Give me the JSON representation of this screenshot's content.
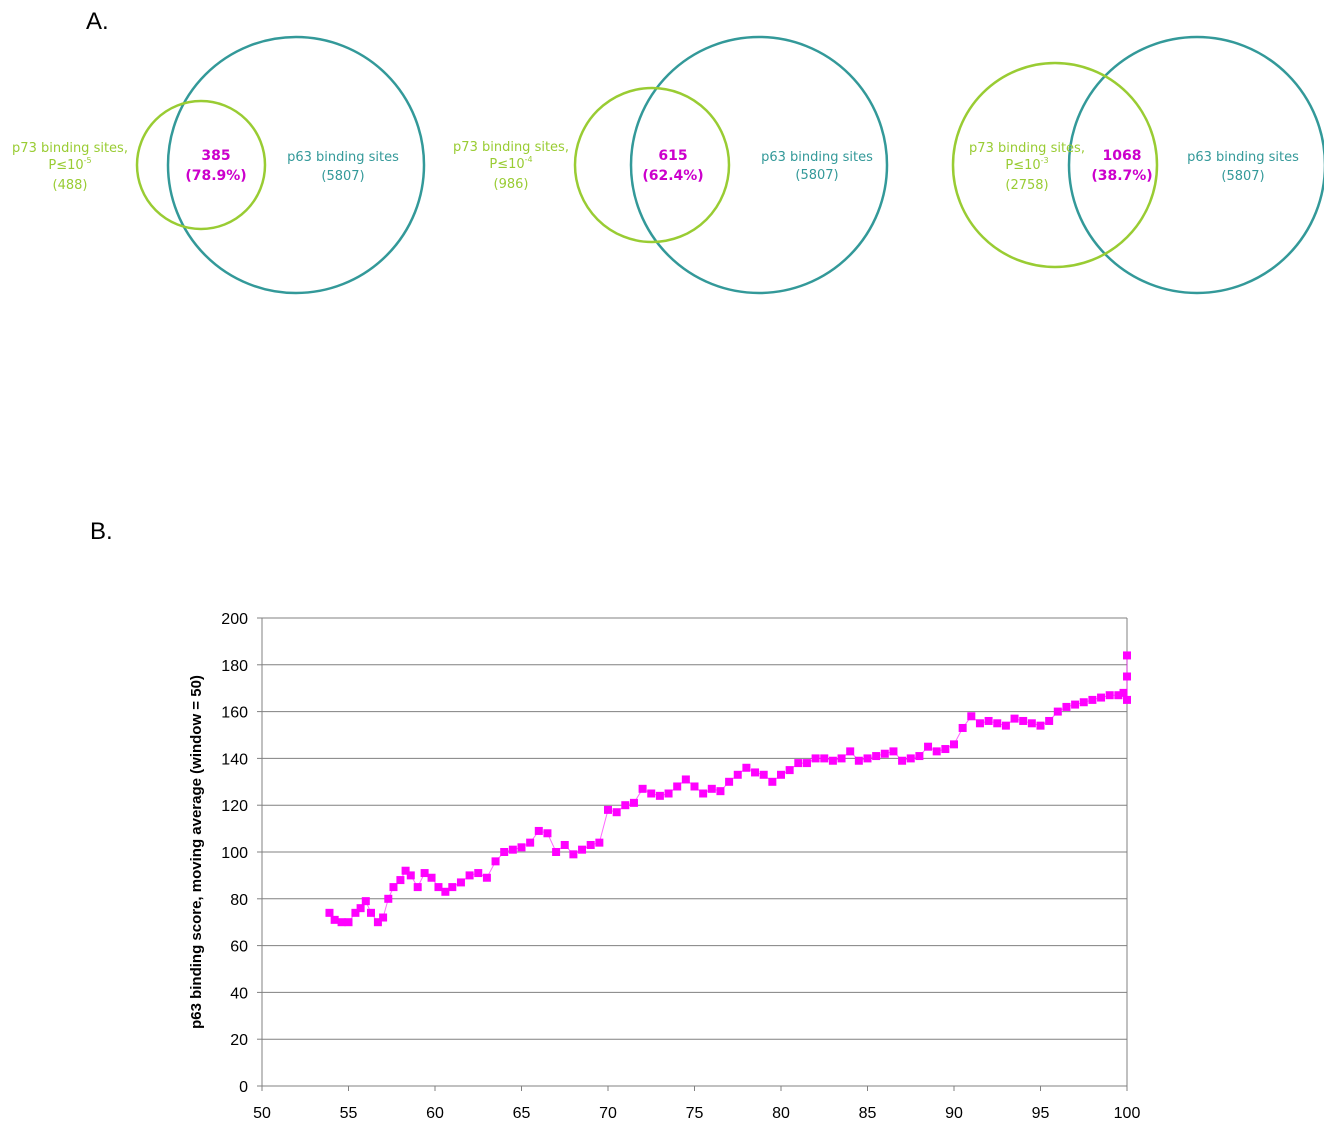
{
  "panels": {
    "a": "A.",
    "b": "B."
  },
  "colors": {
    "p73": "#99cc33",
    "p63": "#339999",
    "overlap": "#cc00cc",
    "marker": "#ff00ff",
    "grid": "#808080"
  },
  "venn": [
    {
      "p73_label": "p73 binding sites,",
      "p73_threshold_base": "P≤10",
      "p73_threshold_exp": "-5",
      "p73_count": "(488)",
      "overlap_count": "385",
      "overlap_percent": "(78.9%)",
      "p63_label": "p63 binding sites",
      "p63_count": "(5807)"
    },
    {
      "p73_label": "p73 binding sites,",
      "p73_threshold_base": "P≤10",
      "p73_threshold_exp": "-4",
      "p73_count": "(986)",
      "overlap_count": "615",
      "overlap_percent": "(62.4%)",
      "p63_label": "p63 binding sites",
      "p63_count": "(5807)"
    },
    {
      "p73_label": "p73 binding sites,",
      "p73_threshold_base": "P≤10",
      "p73_threshold_exp": "-3",
      "p73_count": "(2758)",
      "overlap_count": "1068",
      "overlap_percent": "(38.7%)",
      "p63_label": "p63 binding sites",
      "p63_count": "(5807)"
    }
  ],
  "chart_data": {
    "type": "scatter",
    "title": "",
    "xlabel": "",
    "ylabel": "p63 binding score, moving average (window = 50)",
    "xlim": [
      50,
      100
    ],
    "ylim": [
      0,
      200
    ],
    "xticks": [
      "50",
      "55",
      "60",
      "65",
      "70",
      "75",
      "80",
      "85",
      "90",
      "95",
      "100"
    ],
    "yticks": [
      "0",
      "20",
      "40",
      "60",
      "80",
      "100",
      "120",
      "140",
      "160",
      "180",
      "200"
    ],
    "grid": "horizontal",
    "legend": "none",
    "series": [
      {
        "x": [
          53.9,
          54.2,
          54.6,
          55.0,
          55.4,
          55.7,
          56.0,
          56.3,
          56.7,
          57.0,
          57.3,
          57.6,
          58.0,
          58.3,
          58.6,
          59.0,
          59.4,
          59.8,
          60.2,
          60.6,
          61.0,
          61.5,
          62.0,
          62.5,
          63.0,
          63.5,
          64.0,
          64.5,
          65.0,
          65.5,
          66.0,
          66.5,
          67.0,
          67.5,
          68.0,
          68.5,
          69.0,
          69.5,
          70.0,
          70.5,
          71.0,
          71.5,
          72.0,
          72.5,
          73.0,
          73.5,
          74.0,
          74.5,
          75.0,
          75.5,
          76.0,
          76.5,
          77.0,
          77.5,
          78.0,
          78.5,
          79.0,
          79.5,
          80.0,
          80.5,
          81.0,
          81.5,
          82.0,
          82.5,
          83.0,
          83.5,
          84.0,
          84.5,
          85.0,
          85.5,
          86.0,
          86.5,
          87.0,
          87.5,
          88.0,
          88.5,
          89.0,
          89.5,
          90.0,
          90.5,
          91.0,
          91.5,
          92.0,
          92.5,
          93.0,
          93.5,
          94.0,
          94.5,
          95.0,
          95.5,
          96.0,
          96.5,
          97.0,
          97.5,
          98.0,
          98.5,
          99.0,
          99.5,
          99.8,
          100.0,
          100.0,
          100.0
        ],
        "y": [
          74,
          71,
          70,
          70,
          74,
          76,
          79,
          74,
          70,
          72,
          80,
          85,
          88,
          92,
          90,
          85,
          91,
          89,
          85,
          83,
          85,
          87,
          90,
          91,
          89,
          96,
          100,
          101,
          102,
          104,
          109,
          108,
          100,
          103,
          99,
          101,
          103,
          104,
          118,
          117,
          120,
          121,
          127,
          125,
          124,
          125,
          128,
          131,
          128,
          125,
          127,
          126,
          130,
          133,
          136,
          134,
          133,
          130,
          133,
          135,
          138,
          138,
          140,
          140,
          139,
          140,
          143,
          139,
          140,
          141,
          142,
          143,
          139,
          140,
          141,
          145,
          143,
          144,
          146,
          153,
          158,
          155,
          156,
          155,
          154,
          157,
          156,
          155,
          154,
          156,
          160,
          162,
          163,
          164,
          165,
          166,
          167,
          167,
          168,
          165,
          175,
          184
        ]
      }
    ]
  }
}
